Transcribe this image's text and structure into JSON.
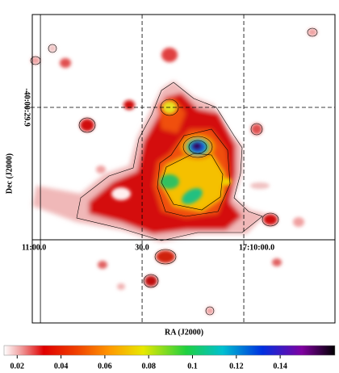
{
  "chart_data": {
    "type": "image",
    "xlabel": "RA (J2000)",
    "ylabel": "Dec (J2000)",
    "xlim": [
      61862.4,
      61773.1
    ],
    "xticks": [
      {
        "value": 61860,
        "label": "11:00.0"
      },
      {
        "value": 61830,
        "label": "30.0"
      },
      {
        "value": 61800,
        "label": "17:10:00.0"
      }
    ],
    "ylim": [
      -144760.1,
      -143715.4
    ],
    "yticks": [
      {
        "value": -144029.9,
        "label": "-40:00:29.9"
      }
    ],
    "grid": true,
    "colorbar": {
      "lim": [
        0.014,
        0.165
      ],
      "ticks": [
        0.02,
        0.04,
        0.06,
        0.08,
        0.1,
        0.12,
        0.14
      ]
    }
  }
}
